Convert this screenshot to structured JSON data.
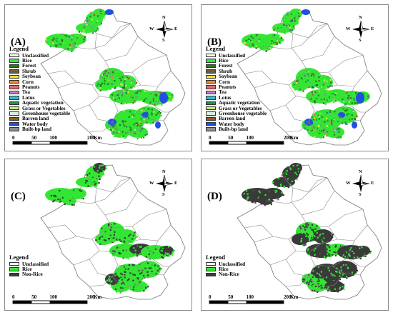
{
  "panels": [
    {
      "id": "A",
      "label": "(A)",
      "type": "full"
    },
    {
      "id": "B",
      "label": "(B)",
      "type": "full"
    },
    {
      "id": "C",
      "label": "(C)",
      "type": "binary",
      "dark_share": 0.3
    },
    {
      "id": "D",
      "label": "(D)",
      "type": "binary",
      "dark_share": 0.7
    }
  ],
  "legend_title": "Legend",
  "legend_full": [
    {
      "label": "Unclassified",
      "color": "#ffffff"
    },
    {
      "label": "Rice",
      "color": "#33e633"
    },
    {
      "label": "Forest",
      "color": "#1f7a1f"
    },
    {
      "label": "Shrub",
      "color": "#6b5a47"
    },
    {
      "label": "Soybean",
      "color": "#f2e12e"
    },
    {
      "label": "Corn",
      "color": "#e88a33"
    },
    {
      "label": "Peanuts",
      "color": "#e36b6b"
    },
    {
      "label": "Tea",
      "color": "#c77fc9"
    },
    {
      "label": "Lotus",
      "color": "#3fb8c7"
    },
    {
      "label": "Aquatic vegetation",
      "color": "#2e8b57"
    },
    {
      "label": "Grass or Vegetables",
      "color": "#c2f26b"
    },
    {
      "label": "Greenhouse vegetable",
      "color": "#d6efe0"
    },
    {
      "label": "Barren land",
      "color": "#8b5a1e"
    },
    {
      "label": "Water body",
      "color": "#2050e0"
    },
    {
      "label": "Built-bp land",
      "color": "#8c8c8c"
    }
  ],
  "legend_binary": [
    {
      "label": "Unclassified",
      "color": "#ffffff"
    },
    {
      "label": "Rice",
      "color": "#33e633"
    },
    {
      "label": "Non-Rice",
      "color": "#3a3a3a"
    }
  ],
  "scale": {
    "ticks": [
      "0",
      "50",
      "100",
      "200"
    ],
    "unit": "Km"
  },
  "compass": {
    "n": "N",
    "s": "S",
    "e": "E",
    "w": "W"
  }
}
